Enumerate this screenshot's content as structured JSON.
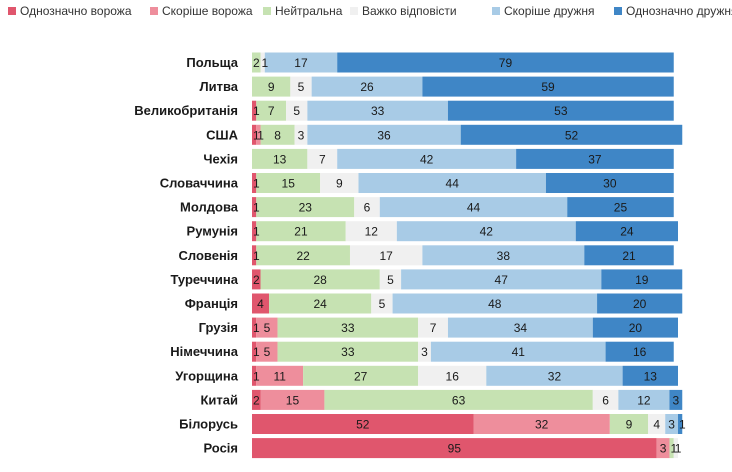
{
  "chart_data": {
    "type": "bar",
    "orientation": "horizontal",
    "stacked": true,
    "legend_position": "top",
    "grid": false,
    "xlim": [
      0,
      100
    ],
    "categories": [
      "Польща",
      "Литва",
      "Великобританія",
      "США",
      "Чехія",
      "Словаччина",
      "Молдова",
      "Румунія",
      "Словенія",
      "Туреччина",
      "Франція",
      "Грузія",
      "Німеччина",
      "Угорщина",
      "Китай",
      "Білорусь",
      "Росія"
    ],
    "series": [
      {
        "name": "Однозначно ворожа",
        "color": "#e0566d",
        "values": [
          0,
          0,
          1,
          1,
          0,
          1,
          1,
          1,
          1,
          2,
          4,
          1,
          1,
          1,
          2,
          52,
          95
        ]
      },
      {
        "name": "Скоріше ворожа",
        "color": "#ee8e9c",
        "values": [
          0,
          0,
          0,
          1,
          0,
          0,
          0,
          0,
          0,
          0,
          0,
          5,
          5,
          11,
          15,
          32,
          3
        ]
      },
      {
        "name": "Нейтральна",
        "color": "#c6e2b2",
        "values": [
          2,
          9,
          7,
          8,
          13,
          15,
          23,
          21,
          22,
          28,
          24,
          33,
          33,
          27,
          63,
          9,
          1
        ]
      },
      {
        "name": "Важко відповісти",
        "color": "#f0f0f0",
        "values": [
          1,
          5,
          5,
          3,
          7,
          9,
          6,
          12,
          17,
          5,
          5,
          7,
          3,
          16,
          6,
          4,
          1
        ]
      },
      {
        "name": "Скоріше дружня",
        "color": "#a8cbe6",
        "values": [
          17,
          26,
          33,
          36,
          42,
          44,
          44,
          42,
          38,
          47,
          48,
          34,
          41,
          32,
          12,
          3,
          0
        ]
      },
      {
        "name": "Однозначно дружня",
        "color": "#3f86c6",
        "values": [
          79,
          59,
          53,
          52,
          37,
          30,
          25,
          24,
          21,
          19,
          20,
          20,
          16,
          13,
          3,
          1,
          0
        ]
      }
    ]
  }
}
